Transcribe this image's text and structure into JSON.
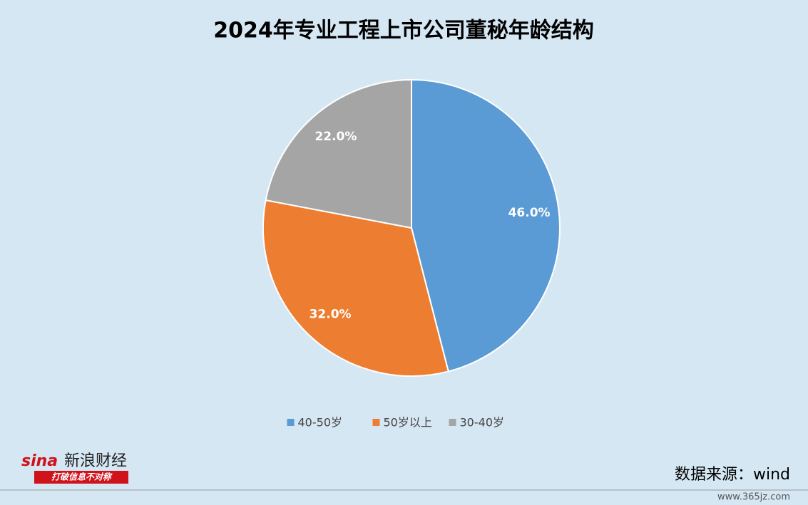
{
  "chart_data": {
    "type": "pie",
    "title": "2024年专业工程上市公司董秘年龄结构",
    "categories": [
      "40-50岁",
      "50岁以上",
      "30-40岁"
    ],
    "values": [
      46,
      32,
      22
    ],
    "value_labels": [
      "46.0%",
      "32.0%",
      "22.0%"
    ],
    "colors": [
      "#5b9bd5",
      "#ed7d31",
      "#a5a5a5"
    ],
    "legend": "bottom"
  },
  "source": "数据来源：wind",
  "logo": {
    "brand": "sina",
    "name": "新浪财经",
    "slogan": "打破信息不对称"
  },
  "watermark": "www.365jz.com"
}
